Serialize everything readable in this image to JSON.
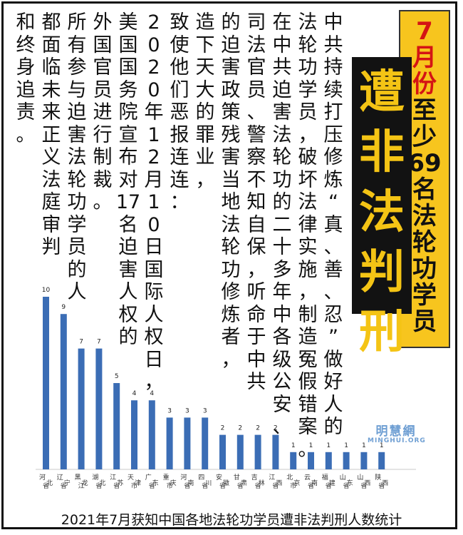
{
  "badge": {
    "segments": [
      {
        "text": "7月份",
        "color": "#d41414"
      },
      {
        "text": "至少69名法轮功学员",
        "color": "#111111"
      }
    ]
  },
  "headline": "遭非法判刑",
  "body_columns": [
    "中共持续打压修炼",
    "法轮功学员，破坏法律实施，制造冤假错案。",
    "在中共迫害法轮功的二十多年中各级公安、",
    "司法官员、警察不知自保，听命于中共",
    "的迫害政策残害当地法轮功修炼者，",
    "造下天大的罪业，",
    "致使他们恶报连连：",
    "2020年12月10日国际人权日，",
    "美国国务院宣布对17名迫害人权的",
    "外国官员进行制裁。",
    "所有参与迫害法轮功学员的人",
    "都面临未来正义法庭审判",
    "和终身追责。"
  ],
  "quote_run": "“真、善、忍”做好人的",
  "logo": {
    "cn": "明慧網",
    "en": "MINGHUI.ORG"
  },
  "chart_data": {
    "type": "bar",
    "title": "2021年7月获知中国各地法轮功学员遭非法判刑人数统计",
    "categories": [
      "河北省",
      "辽宁省",
      "黑龙江",
      "湖北省",
      "江苏省",
      "天津市",
      "广东省",
      "重庆市",
      "河南省",
      "四川省",
      "安徽省",
      "甘肃省",
      "吉林省",
      "江西省",
      "北京市",
      "云南省",
      "福建省",
      "山东省",
      "山西省",
      "陕西省"
    ],
    "values": [
      10,
      9,
      7,
      7,
      5,
      4,
      4,
      3,
      3,
      3,
      2,
      2,
      2,
      2,
      1,
      1,
      1,
      1,
      1,
      1
    ],
    "ylim": [
      0,
      10
    ],
    "bar_color": "#3b6db5",
    "data_labels": true,
    "grid": false
  }
}
